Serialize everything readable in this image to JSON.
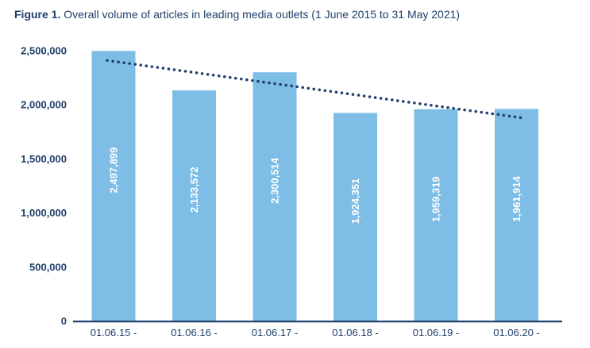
{
  "figure_label": "Figure 1.",
  "figure_title": "Overall volume of articles in leading media outlets (1 June 2015 to 31 May 2021)",
  "colors": {
    "bar": "#7dbde6",
    "axis": "#1f3f6b",
    "trend": "#1f3f6b"
  },
  "chart_data": {
    "type": "bar",
    "title": "Overall volume of articles in leading media outlets (1 June 2015 to 31 May 2021)",
    "categories": [
      "01.06.15 -",
      "01.06.16 -",
      "01.06.17 -",
      "01.06.18 -",
      "01.06.19 -",
      "01.06.20 -"
    ],
    "values": [
      2497899,
      2133572,
      2300514,
      1924351,
      1959319,
      1961914
    ],
    "value_labels": [
      "2,497,899",
      "2,133,572",
      "2,300,514",
      "1,924,351",
      "1,959,319",
      "1,961,914"
    ],
    "ylim": [
      0,
      2500000
    ],
    "yticks": [
      0,
      500000,
      1000000,
      1500000,
      2000000,
      2500000
    ],
    "ytick_labels": [
      "0",
      "500,000",
      "1,000,000",
      "1,500,000",
      "2,000,000",
      "2,500,000"
    ],
    "trendline": {
      "style": "dotted",
      "start": 2410000,
      "end": 1880000
    },
    "grid": false,
    "xlabel": "",
    "ylabel": ""
  }
}
